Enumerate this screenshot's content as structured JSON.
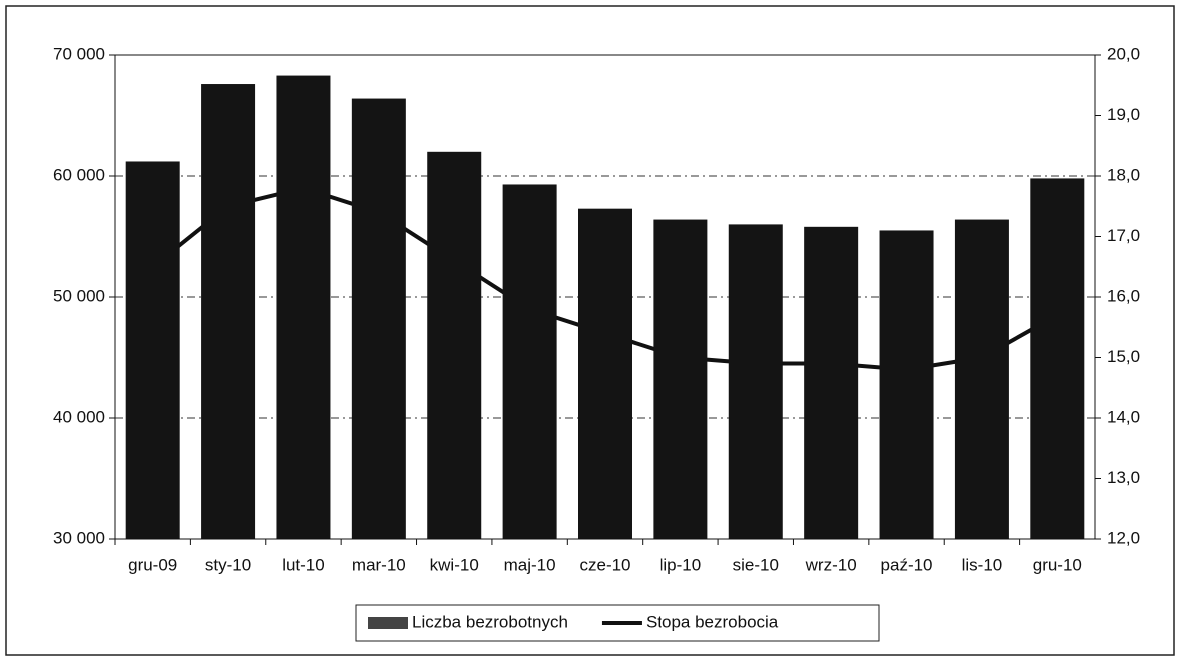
{
  "chart_data": {
    "type": "bar-line",
    "categories": [
      "gru-09",
      "sty-10",
      "lut-10",
      "mar-10",
      "kwi-10",
      "maj-10",
      "cze-10",
      "lip-10",
      "sie-10",
      "wrz-10",
      "paź-10",
      "lis-10",
      "gru-10"
    ],
    "series": [
      {
        "name": "Liczba bezrobotnych",
        "type": "bar",
        "color": "#141414",
        "values": [
          61200,
          67600,
          68300,
          66400,
          62000,
          59300,
          57300,
          56400,
          56000,
          55800,
          55500,
          56400,
          59800
        ]
      },
      {
        "name": "Stopa bezrobocia",
        "type": "line",
        "axis": "y2",
        "color": "#111111",
        "values": [
          16.5,
          17.5,
          17.8,
          17.4,
          16.6,
          15.8,
          15.4,
          15.0,
          14.9,
          14.9,
          14.8,
          15.0,
          15.7
        ]
      }
    ],
    "ylim": [
      30000,
      70000
    ],
    "yticks": [
      {
        "value": 30000,
        "label": "30 000"
      },
      {
        "value": 40000,
        "label": "40 000"
      },
      {
        "value": 50000,
        "label": "50 000"
      },
      {
        "value": 60000,
        "label": "60 000"
      },
      {
        "value": 70000,
        "label": "70 000"
      }
    ],
    "y2lim": [
      12,
      20
    ],
    "y2ticks": [
      {
        "value": 12,
        "label": "12,0"
      },
      {
        "value": 13,
        "label": "13,0"
      },
      {
        "value": 14,
        "label": "14,0"
      },
      {
        "value": 15,
        "label": "15,0"
      },
      {
        "value": 16,
        "label": "16,0"
      },
      {
        "value": 17,
        "label": "17,0"
      },
      {
        "value": 18,
        "label": "18,0"
      },
      {
        "value": 19,
        "label": "19,0"
      },
      {
        "value": 20,
        "label": "20,0"
      }
    ],
    "grid": true,
    "legend": "bottom"
  }
}
